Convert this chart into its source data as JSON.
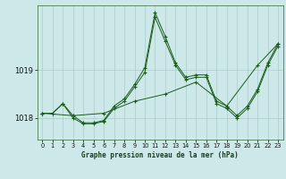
{
  "title": "Graphe pression niveau de la mer (hPa)",
  "bg_color": "#cce8e8",
  "line_color": "#1a5c1a",
  "grid_color": "#aacccc",
  "xlim": [
    -0.5,
    23.5
  ],
  "ylim": [
    1017.55,
    1020.35
  ],
  "yticks": [
    1018,
    1019
  ],
  "xticks": [
    0,
    1,
    2,
    3,
    4,
    5,
    6,
    7,
    8,
    9,
    10,
    11,
    12,
    13,
    14,
    15,
    16,
    17,
    18,
    19,
    20,
    21,
    22,
    23
  ],
  "series": [
    {
      "x": [
        0,
        1,
        2,
        3,
        4,
        5,
        6,
        7,
        8,
        9,
        10,
        11,
        12,
        13,
        14,
        15,
        16,
        17,
        18,
        19,
        20,
        21,
        22,
        23
      ],
      "y": [
        1018.1,
        1018.1,
        1018.3,
        1018.05,
        1017.9,
        1017.9,
        1017.95,
        1018.25,
        1018.4,
        1018.7,
        1019.05,
        1020.2,
        1019.7,
        1019.15,
        1018.85,
        1018.9,
        1018.9,
        1018.35,
        1018.25,
        1018.05,
        1018.25,
        1018.6,
        1019.15,
        1019.55
      ]
    },
    {
      "x": [
        0,
        1,
        2,
        3,
        4,
        5,
        6,
        7,
        8,
        9,
        10,
        11,
        12,
        13,
        14,
        15,
        16,
        17,
        18,
        19,
        20,
        21,
        22,
        23
      ],
      "y": [
        1018.1,
        1018.1,
        1018.3,
        1018.0,
        1017.88,
        1017.88,
        1017.93,
        1018.2,
        1018.35,
        1018.65,
        1018.95,
        1020.1,
        1019.6,
        1019.1,
        1018.8,
        1018.85,
        1018.85,
        1018.3,
        1018.2,
        1018.0,
        1018.2,
        1018.55,
        1019.1,
        1019.5
      ]
    },
    {
      "x": [
        0,
        3,
        6,
        9,
        12,
        15,
        18,
        21,
        23
      ],
      "y": [
        1018.1,
        1018.05,
        1018.1,
        1018.35,
        1018.5,
        1018.75,
        1018.25,
        1019.1,
        1019.55
      ]
    }
  ]
}
